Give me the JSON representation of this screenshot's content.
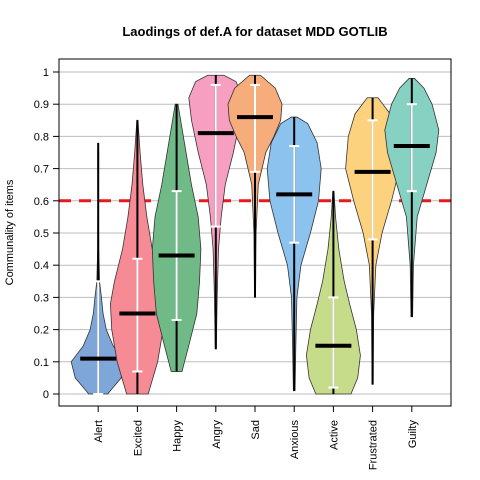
{
  "chart_data": {
    "type": "violin",
    "title": "Laodings of def.A for dataset MDD GOTLIB",
    "xlabel": "",
    "ylabel": "Communality of items",
    "ylim": [
      0,
      1
    ],
    "yticks": [
      "0",
      "0.1",
      "0.2",
      "0.3",
      "0.4",
      "0.5",
      "0.6",
      "0.7",
      "0.8",
      "0.9",
      "1"
    ],
    "grid": true,
    "reference_line": {
      "y": 0.6,
      "color": "#e41a1c",
      "style": "dashed"
    },
    "categories": [
      "Alert",
      "Excited",
      "Happy",
      "Angry",
      "Sad",
      "Anxious",
      "Active",
      "Frustrated",
      "Guilty"
    ],
    "colors": [
      "#7ea6d8",
      "#f78b95",
      "#6fba86",
      "#f79fc0",
      "#f6ad7b",
      "#8cc2ee",
      "#c7dc8b",
      "#fdd27e",
      "#87d1c2"
    ],
    "series": [
      {
        "min": 0.0,
        "max": 0.78,
        "median": 0.11,
        "whisker_low": 0.0,
        "whisker_high": 0.35,
        "violin": [
          [
            0.0,
            0.35
          ],
          [
            0.05,
            0.85
          ],
          [
            0.1,
            1.0
          ],
          [
            0.15,
            0.55
          ],
          [
            0.2,
            0.3
          ],
          [
            0.25,
            0.18
          ],
          [
            0.3,
            0.12
          ],
          [
            0.35,
            0.05
          ],
          [
            0.45,
            0.02
          ],
          [
            0.6,
            0.01
          ],
          [
            0.75,
            0.02
          ],
          [
            0.78,
            0.0
          ]
        ]
      },
      {
        "min": 0.0,
        "max": 0.85,
        "median": 0.25,
        "whisker_low": 0.07,
        "whisker_high": 0.42,
        "violin": [
          [
            0.0,
            0.4
          ],
          [
            0.1,
            0.75
          ],
          [
            0.2,
            0.95
          ],
          [
            0.28,
            1.0
          ],
          [
            0.35,
            0.85
          ],
          [
            0.45,
            0.55
          ],
          [
            0.55,
            0.35
          ],
          [
            0.65,
            0.2
          ],
          [
            0.75,
            0.1
          ],
          [
            0.85,
            0.02
          ]
        ]
      },
      {
        "min": 0.07,
        "max": 0.9,
        "median": 0.43,
        "whisker_low": 0.23,
        "whisker_high": 0.63,
        "violin": [
          [
            0.07,
            0.2
          ],
          [
            0.15,
            0.45
          ],
          [
            0.25,
            0.75
          ],
          [
            0.35,
            0.85
          ],
          [
            0.45,
            0.9
          ],
          [
            0.55,
            0.8
          ],
          [
            0.65,
            0.55
          ],
          [
            0.75,
            0.35
          ],
          [
            0.85,
            0.15
          ],
          [
            0.9,
            0.05
          ]
        ]
      },
      {
        "min": 0.14,
        "max": 0.99,
        "median": 0.81,
        "whisker_low": 0.52,
        "whisker_high": 0.96,
        "violin": [
          [
            0.14,
            0.02
          ],
          [
            0.3,
            0.05
          ],
          [
            0.45,
            0.1
          ],
          [
            0.55,
            0.2
          ],
          [
            0.65,
            0.35
          ],
          [
            0.75,
            0.65
          ],
          [
            0.85,
            0.9
          ],
          [
            0.92,
            1.0
          ],
          [
            0.97,
            0.75
          ],
          [
            0.99,
            0.3
          ]
        ]
      },
      {
        "min": 0.3,
        "max": 0.99,
        "median": 0.86,
        "whisker_low": 0.69,
        "whisker_high": 0.96,
        "violin": [
          [
            0.3,
            0.02
          ],
          [
            0.5,
            0.04
          ],
          [
            0.65,
            0.12
          ],
          [
            0.75,
            0.4
          ],
          [
            0.8,
            0.7
          ],
          [
            0.85,
            0.95
          ],
          [
            0.9,
            1.0
          ],
          [
            0.95,
            0.75
          ],
          [
            0.99,
            0.2
          ]
        ]
      },
      {
        "min": 0.01,
        "max": 0.86,
        "median": 0.62,
        "whisker_low": 0.47,
        "whisker_high": 0.77,
        "violin": [
          [
            0.01,
            0.03
          ],
          [
            0.15,
            0.06
          ],
          [
            0.3,
            0.1
          ],
          [
            0.4,
            0.25
          ],
          [
            0.5,
            0.6
          ],
          [
            0.6,
            0.9
          ],
          [
            0.7,
            1.0
          ],
          [
            0.78,
            0.85
          ],
          [
            0.84,
            0.5
          ],
          [
            0.86,
            0.1
          ]
        ]
      },
      {
        "min": 0.0,
        "max": 0.63,
        "median": 0.15,
        "whisker_low": 0.02,
        "whisker_high": 0.3,
        "violin": [
          [
            0.0,
            0.65
          ],
          [
            0.05,
            0.9
          ],
          [
            0.12,
            1.0
          ],
          [
            0.2,
            0.85
          ],
          [
            0.28,
            0.6
          ],
          [
            0.35,
            0.4
          ],
          [
            0.45,
            0.2
          ],
          [
            0.55,
            0.08
          ],
          [
            0.63,
            0.02
          ]
        ]
      },
      {
        "min": 0.03,
        "max": 0.92,
        "median": 0.69,
        "whisker_low": 0.48,
        "whisker_high": 0.85,
        "violin": [
          [
            0.03,
            0.02
          ],
          [
            0.25,
            0.04
          ],
          [
            0.4,
            0.12
          ],
          [
            0.5,
            0.35
          ],
          [
            0.6,
            0.7
          ],
          [
            0.7,
            1.0
          ],
          [
            0.8,
            0.9
          ],
          [
            0.87,
            0.65
          ],
          [
            0.92,
            0.2
          ]
        ]
      },
      {
        "min": 0.24,
        "max": 0.98,
        "median": 0.77,
        "whisker_low": 0.63,
        "whisker_high": 0.9,
        "violin": [
          [
            0.24,
            0.03
          ],
          [
            0.4,
            0.06
          ],
          [
            0.55,
            0.2
          ],
          [
            0.65,
            0.55
          ],
          [
            0.75,
            0.9
          ],
          [
            0.82,
            1.0
          ],
          [
            0.9,
            0.75
          ],
          [
            0.95,
            0.45
          ],
          [
            0.98,
            0.1
          ]
        ]
      }
    ]
  }
}
